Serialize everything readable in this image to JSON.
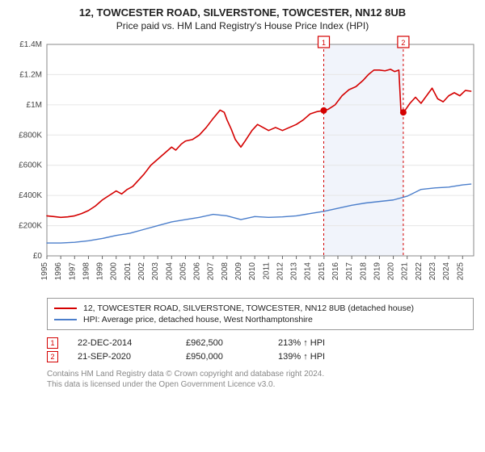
{
  "title": "12, TOWCESTER ROAD, SILVERSTONE, TOWCESTER, NN12 8UB",
  "subtitle": "Price paid vs. HM Land Registry's House Price Index (HPI)",
  "chart": {
    "type": "line",
    "background_color": "#ffffff",
    "plot_border_color": "#888888",
    "grid_color": "#e6e6e6",
    "highlight_band": {
      "x_from": 2014.98,
      "x_to": 2020.72,
      "fill": "#f1f4fb"
    },
    "x": {
      "min": 1995,
      "max": 2025.8,
      "ticks": [
        1995,
        1996,
        1997,
        1998,
        1999,
        2000,
        2001,
        2002,
        2003,
        2004,
        2005,
        2006,
        2007,
        2008,
        2009,
        2010,
        2011,
        2012,
        2013,
        2014,
        2015,
        2016,
        2017,
        2018,
        2019,
        2020,
        2021,
        2022,
        2023,
        2024,
        2025
      ],
      "label_fontsize": 10,
      "label_color": "#444444",
      "label_rotation": -90
    },
    "y": {
      "min": 0,
      "max": 1400000,
      "ticks": [
        0,
        200000,
        400000,
        600000,
        800000,
        1000000,
        1200000,
        1400000
      ],
      "tick_labels": [
        "£0",
        "£200K",
        "£400K",
        "£600K",
        "£800K",
        "£1M",
        "£1.2M",
        "£1.4M"
      ],
      "label_fontsize": 10,
      "label_color": "#444444"
    },
    "series": [
      {
        "id": "property",
        "color": "#d40000",
        "width": 1.6,
        "points": [
          [
            1995,
            265000
          ],
          [
            1995.5,
            260000
          ],
          [
            1996,
            255000
          ],
          [
            1996.5,
            258000
          ],
          [
            1997,
            265000
          ],
          [
            1997.5,
            280000
          ],
          [
            1998,
            300000
          ],
          [
            1998.5,
            330000
          ],
          [
            1999,
            370000
          ],
          [
            1999.5,
            400000
          ],
          [
            2000,
            430000
          ],
          [
            2000.4,
            410000
          ],
          [
            2000.8,
            440000
          ],
          [
            2001.2,
            460000
          ],
          [
            2001.6,
            500000
          ],
          [
            2002,
            540000
          ],
          [
            2002.5,
            600000
          ],
          [
            2003,
            640000
          ],
          [
            2003.5,
            680000
          ],
          [
            2004,
            720000
          ],
          [
            2004.3,
            700000
          ],
          [
            2004.7,
            740000
          ],
          [
            2005,
            760000
          ],
          [
            2005.5,
            770000
          ],
          [
            2006,
            800000
          ],
          [
            2006.5,
            850000
          ],
          [
            2007,
            910000
          ],
          [
            2007.5,
            965000
          ],
          [
            2007.8,
            950000
          ],
          [
            2008,
            900000
          ],
          [
            2008.3,
            840000
          ],
          [
            2008.6,
            770000
          ],
          [
            2009,
            720000
          ],
          [
            2009.3,
            760000
          ],
          [
            2009.8,
            830000
          ],
          [
            2010.2,
            870000
          ],
          [
            2010.6,
            850000
          ],
          [
            2011,
            830000
          ],
          [
            2011.5,
            850000
          ],
          [
            2012,
            830000
          ],
          [
            2012.5,
            850000
          ],
          [
            2013,
            870000
          ],
          [
            2013.5,
            900000
          ],
          [
            2014,
            940000
          ],
          [
            2014.5,
            955000
          ],
          [
            2014.98,
            962500
          ],
          [
            2015.3,
            970000
          ],
          [
            2015.8,
            1000000
          ],
          [
            2016.3,
            1060000
          ],
          [
            2016.8,
            1100000
          ],
          [
            2017.3,
            1120000
          ],
          [
            2017.8,
            1160000
          ],
          [
            2018.2,
            1200000
          ],
          [
            2018.6,
            1230000
          ],
          [
            2019,
            1230000
          ],
          [
            2019.4,
            1225000
          ],
          [
            2019.8,
            1235000
          ],
          [
            2020.1,
            1220000
          ],
          [
            2020.4,
            1230000
          ],
          [
            2020.55,
            960000
          ],
          [
            2020.72,
            950000
          ],
          [
            2020.9,
            970000
          ],
          [
            2021.2,
            1010000
          ],
          [
            2021.6,
            1050000
          ],
          [
            2022,
            1010000
          ],
          [
            2022.4,
            1060000
          ],
          [
            2022.8,
            1110000
          ],
          [
            2023.2,
            1040000
          ],
          [
            2023.6,
            1020000
          ],
          [
            2024,
            1060000
          ],
          [
            2024.4,
            1080000
          ],
          [
            2024.8,
            1060000
          ],
          [
            2025.2,
            1095000
          ],
          [
            2025.6,
            1090000
          ]
        ]
      },
      {
        "id": "hpi",
        "color": "#4b7ecb",
        "width": 1.4,
        "points": [
          [
            1995,
            85000
          ],
          [
            1996,
            85000
          ],
          [
            1997,
            90000
          ],
          [
            1998,
            100000
          ],
          [
            1999,
            115000
          ],
          [
            2000,
            135000
          ],
          [
            2001,
            150000
          ],
          [
            2002,
            175000
          ],
          [
            2003,
            200000
          ],
          [
            2004,
            225000
          ],
          [
            2005,
            240000
          ],
          [
            2006,
            255000
          ],
          [
            2007,
            275000
          ],
          [
            2008,
            265000
          ],
          [
            2009,
            240000
          ],
          [
            2010,
            260000
          ],
          [
            2011,
            255000
          ],
          [
            2012,
            258000
          ],
          [
            2013,
            265000
          ],
          [
            2014,
            280000
          ],
          [
            2015,
            295000
          ],
          [
            2016,
            315000
          ],
          [
            2017,
            335000
          ],
          [
            2018,
            350000
          ],
          [
            2019,
            360000
          ],
          [
            2020,
            370000
          ],
          [
            2021,
            395000
          ],
          [
            2022,
            440000
          ],
          [
            2023,
            450000
          ],
          [
            2024,
            455000
          ],
          [
            2025,
            470000
          ],
          [
            2025.6,
            475000
          ]
        ]
      }
    ],
    "sale_points": [
      {
        "n": 1,
        "x": 2014.98,
        "y": 962500,
        "color": "#d40000"
      },
      {
        "n": 2,
        "x": 2020.72,
        "y": 950000,
        "color": "#d40000"
      }
    ],
    "callouts": [
      {
        "n": "1",
        "x": 2014.98,
        "box_color": "#d40000"
      },
      {
        "n": "2",
        "x": 2020.72,
        "box_color": "#d40000"
      }
    ]
  },
  "legend": {
    "items": [
      {
        "color": "#d40000",
        "label": "12, TOWCESTER ROAD, SILVERSTONE, TOWCESTER, NN12 8UB (detached house)"
      },
      {
        "color": "#4b7ecb",
        "label": "HPI: Average price, detached house, West Northamptonshire"
      }
    ]
  },
  "sales": [
    {
      "n": "1",
      "date": "22-DEC-2014",
      "price": "£962,500",
      "delta": "213% ↑ HPI",
      "marker_color": "#d40000"
    },
    {
      "n": "2",
      "date": "21-SEP-2020",
      "price": "£950,000",
      "delta": "139% ↑ HPI",
      "marker_color": "#d40000"
    }
  ],
  "footnote_line1": "Contains HM Land Registry data © Crown copyright and database right 2024.",
  "footnote_line2": "This data is licensed under the Open Government Licence v3.0."
}
